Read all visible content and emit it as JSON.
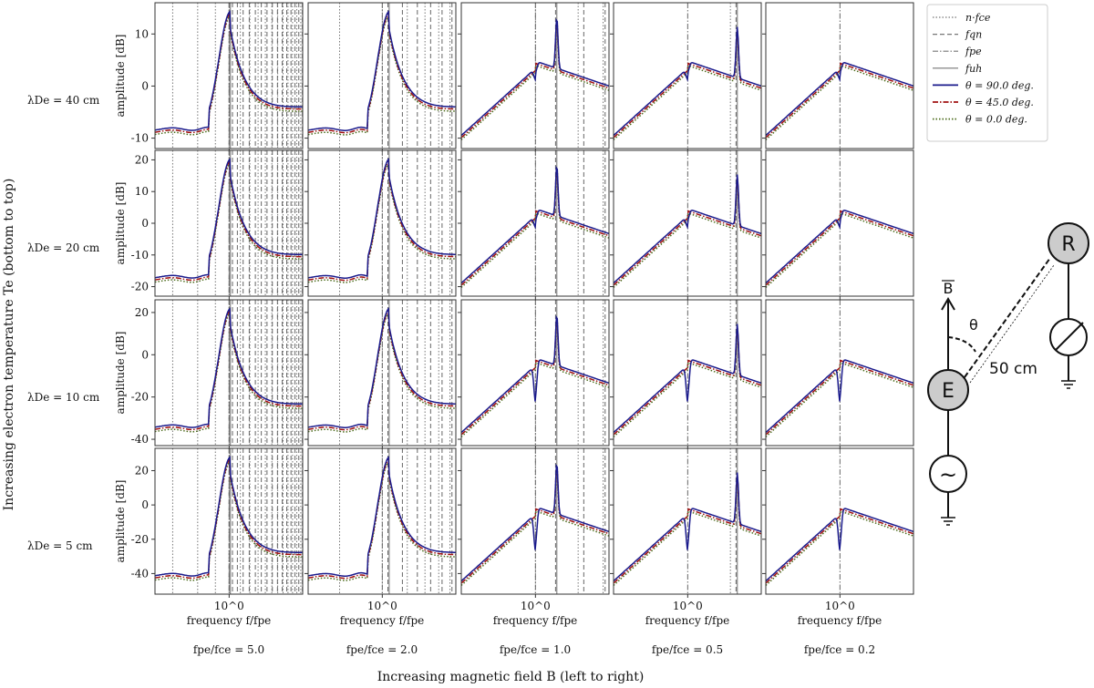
{
  "chart_data": {
    "type": "line",
    "rows": [
      {
        "label": "λDe = 40 cm",
        "ylim": [
          -12,
          16
        ],
        "yticks": [
          -10,
          0,
          10
        ]
      },
      {
        "label": "λDe = 20 cm",
        "ylim": [
          -23,
          23
        ],
        "yticks": [
          -20,
          -10,
          0,
          10,
          20
        ]
      },
      {
        "label": "λDe = 10 cm",
        "ylim": [
          -43,
          26
        ],
        "yticks": [
          -40,
          -20,
          0,
          20
        ]
      },
      {
        "label": "λDe = 5 cm",
        "ylim": [
          -52,
          33
        ],
        "yticks": [
          -40,
          -20,
          0,
          20
        ]
      }
    ],
    "columns": [
      {
        "label": "fpe/fce = 5.0",
        "fpe_fce": 5.0
      },
      {
        "label": "fpe/fce = 2.0",
        "fpe_fce": 2.0
      },
      {
        "label": "fpe/fce = 1.0",
        "fpe_fce": 1.0
      },
      {
        "label": "fpe/fce = 0.5",
        "fpe_fce": 0.5
      },
      {
        "label": "fpe/fce = 0.2",
        "fpe_fce": 0.2
      }
    ],
    "xscale": "log",
    "xlim": [
      0.3,
      3.3
    ],
    "xtick_label": "10^0",
    "xlabel": "frequency f/fpe",
    "ylabel": "amplitude [dB]",
    "series": [
      {
        "name": "θ = 90.0 deg.",
        "color": "#1a1a8c",
        "style": "solid"
      },
      {
        "name": "θ = 45.0 deg.",
        "color": "#a01010",
        "style": "dashdot"
      },
      {
        "name": "θ = 0.0 deg.",
        "color": "#4a6a1a",
        "style": "dotted"
      }
    ],
    "reference_lines": [
      {
        "name": "n·fce",
        "style": "dotted"
      },
      {
        "name": "fqn",
        "style": "dashed"
      },
      {
        "name": "fpe",
        "style": "dashdot"
      },
      {
        "name": "fuh",
        "style": "solid"
      }
    ],
    "legend_position": "top-right"
  },
  "labels": {
    "y_super": "Increasing electron temperature Te (bottom to top)",
    "x_super": "Increasing magnetic field B (left to right)"
  },
  "diagram": {
    "b_label": "B",
    "theta": "θ",
    "distance": "50 cm",
    "emitter": "E",
    "receiver": "R",
    "source": "~"
  }
}
